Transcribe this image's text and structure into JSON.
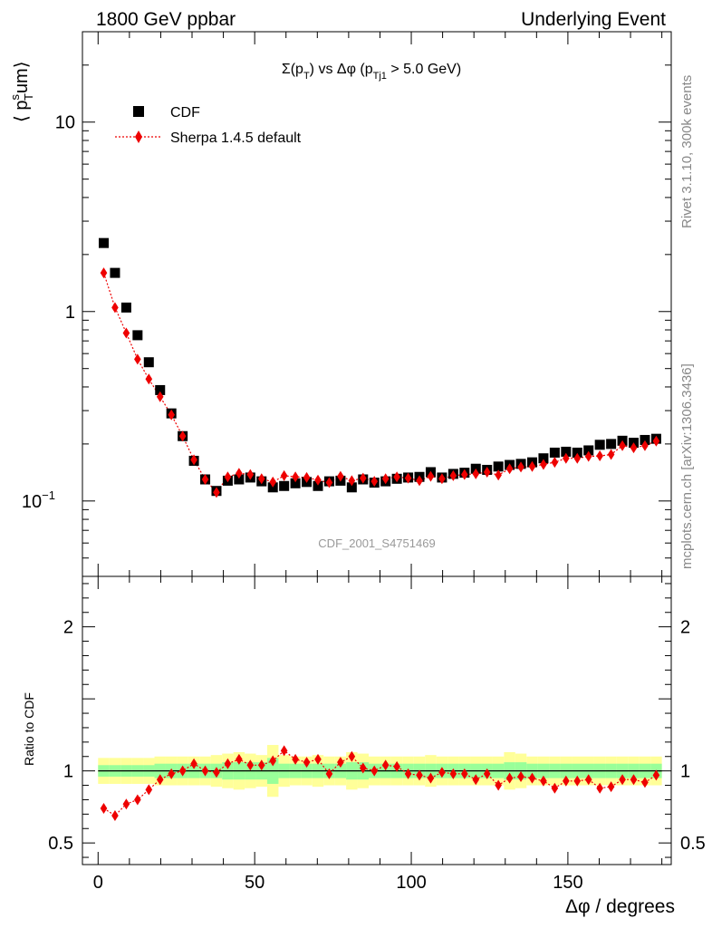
{
  "header": {
    "left": "1800 GeV ppbar",
    "right": "Underlying Event"
  },
  "side": {
    "rivet": "Rivet 3.1.10,  300k events",
    "mcplots": "mcplots.cern.ch [arXiv:1306.3436]"
  },
  "watermark": "CDF_2001_S4751469",
  "colors": {
    "data": "#000000",
    "mc": "#ee0000",
    "band_inner": "#99ff99",
    "band_outer": "#ffff99"
  },
  "chart_data": [
    {
      "type": "scatter",
      "panel": "main",
      "title_parts": {
        "sigma": "Σ(p",
        "sub_t": "T",
        "vs": ") vs Δφ (p",
        "sub_tj1": "Tj1",
        "cut": " > 5.0 GeV)"
      },
      "ylabel_parts": {
        "a": "⟨ p",
        "sup": "s",
        "sub": "T",
        "b": "um⟩"
      },
      "yscale": "log",
      "ylim": [
        0.04,
        30
      ],
      "xlim": [
        -5,
        183
      ],
      "y_ticks": [
        {
          "value": 10,
          "label": "10"
        },
        {
          "value": 1,
          "label": "1"
        },
        {
          "value": 0.1,
          "label": "10",
          "exp": "−1"
        }
      ],
      "legend_position": "top-left",
      "x": [
        1.8,
        5.4,
        9.0,
        12.6,
        16.2,
        19.8,
        23.4,
        27.0,
        30.6,
        34.2,
        37.8,
        41.4,
        45.0,
        48.6,
        52.2,
        55.8,
        59.4,
        63.0,
        66.6,
        70.2,
        73.8,
        77.4,
        81.0,
        84.6,
        88.2,
        91.8,
        95.4,
        99.0,
        102.6,
        106.2,
        109.8,
        113.4,
        117.0,
        120.6,
        124.2,
        127.8,
        131.4,
        135.0,
        138.6,
        142.2,
        145.8,
        149.4,
        153.0,
        156.6,
        160.2,
        163.8,
        167.4,
        171.0,
        174.6,
        178.2
      ],
      "series": [
        {
          "name": "CDF",
          "marker": "square",
          "values": [
            2.3,
            1.6,
            1.05,
            0.75,
            0.54,
            0.385,
            0.29,
            0.22,
            0.163,
            0.13,
            0.113,
            0.128,
            0.13,
            0.133,
            0.127,
            0.118,
            0.12,
            0.124,
            0.126,
            0.12,
            0.127,
            0.128,
            0.118,
            0.13,
            0.125,
            0.127,
            0.131,
            0.133,
            0.134,
            0.142,
            0.133,
            0.139,
            0.141,
            0.148,
            0.146,
            0.152,
            0.155,
            0.157,
            0.16,
            0.168,
            0.18,
            0.182,
            0.18,
            0.185,
            0.198,
            0.2,
            0.208,
            0.203,
            0.21,
            0.213
          ]
        },
        {
          "name": "Sherpa 1.4.5 default",
          "marker": "diamond",
          "line": "dotted",
          "values": [
            1.6,
            1.05,
            0.77,
            0.56,
            0.44,
            0.355,
            0.285,
            0.22,
            0.165,
            0.13,
            0.111,
            0.134,
            0.14,
            0.138,
            0.131,
            0.126,
            0.136,
            0.134,
            0.133,
            0.129,
            0.125,
            0.135,
            0.128,
            0.132,
            0.127,
            0.131,
            0.134,
            0.132,
            0.128,
            0.135,
            0.131,
            0.136,
            0.138,
            0.139,
            0.142,
            0.137,
            0.148,
            0.151,
            0.152,
            0.156,
            0.16,
            0.168,
            0.168,
            0.172,
            0.173,
            0.176,
            0.196,
            0.191,
            0.196,
            0.207
          ]
        }
      ]
    },
    {
      "type": "scatter",
      "panel": "ratio",
      "ylabel": "Ratio to CDF",
      "ylim": [
        0.35,
        2.35
      ],
      "xlim": [
        -5,
        183
      ],
      "xlabel": "Δφ / degrees",
      "x_ticks": [
        0,
        50,
        100,
        150
      ],
      "y_ticks": [
        {
          "value": 2,
          "label": "2"
        },
        {
          "value": 1,
          "label": "1"
        },
        {
          "value": 0.5,
          "label": "0.5"
        }
      ],
      "reference_line": 1,
      "band_inner_halfwidth": [
        0.04,
        0.04,
        0.04,
        0.04,
        0.04,
        0.05,
        0.05,
        0.05,
        0.05,
        0.05,
        0.05,
        0.06,
        0.06,
        0.06,
        0.06,
        0.09,
        0.05,
        0.05,
        0.05,
        0.05,
        0.05,
        0.05,
        0.06,
        0.06,
        0.05,
        0.05,
        0.05,
        0.05,
        0.05,
        0.05,
        0.05,
        0.05,
        0.05,
        0.05,
        0.05,
        0.05,
        0.06,
        0.06,
        0.05,
        0.05,
        0.05,
        0.05,
        0.05,
        0.05,
        0.05,
        0.05,
        0.05,
        0.05,
        0.05,
        0.05
      ],
      "band_outer_halfwidth": [
        0.09,
        0.09,
        0.09,
        0.09,
        0.09,
        0.1,
        0.1,
        0.1,
        0.1,
        0.1,
        0.11,
        0.12,
        0.13,
        0.12,
        0.11,
        0.18,
        0.11,
        0.1,
        0.1,
        0.11,
        0.1,
        0.1,
        0.13,
        0.12,
        0.1,
        0.1,
        0.1,
        0.1,
        0.1,
        0.11,
        0.1,
        0.1,
        0.1,
        0.1,
        0.1,
        0.1,
        0.13,
        0.12,
        0.1,
        0.1,
        0.1,
        0.1,
        0.1,
        0.1,
        0.1,
        0.1,
        0.1,
        0.1,
        0.1,
        0.1
      ],
      "series": [
        {
          "name": "Sherpa 1.4.5 default",
          "values": [
            0.74,
            0.69,
            0.77,
            0.8,
            0.87,
            0.94,
            0.98,
            1.0,
            1.05,
            1.0,
            0.99,
            1.05,
            1.08,
            1.04,
            1.04,
            1.07,
            1.14,
            1.08,
            1.06,
            1.08,
            0.98,
            1.06,
            1.1,
            1.02,
            1.0,
            1.04,
            1.03,
            0.98,
            0.97,
            0.95,
            0.99,
            0.98,
            0.98,
            0.94,
            0.98,
            0.9,
            0.95,
            0.96,
            0.95,
            0.93,
            0.88,
            0.93,
            0.93,
            0.94,
            0.88,
            0.89,
            0.94,
            0.94,
            0.92,
            0.97
          ]
        }
      ]
    }
  ]
}
